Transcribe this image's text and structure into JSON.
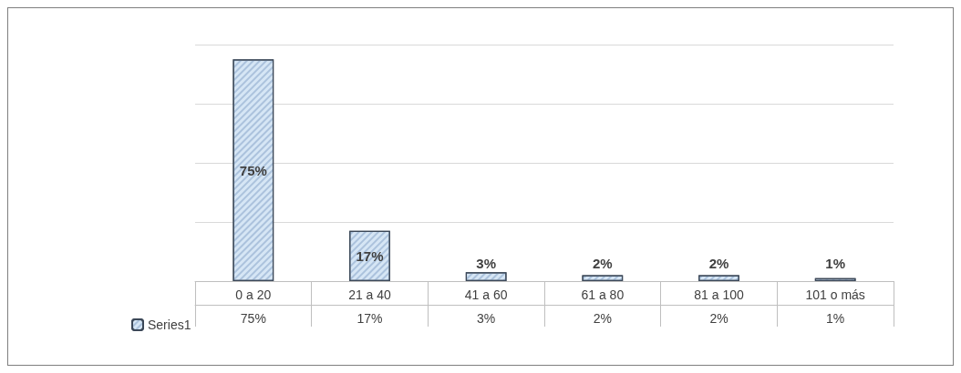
{
  "chart_data": {
    "type": "bar",
    "categories": [
      "0 a 20",
      "21 a 40",
      "41 a 60",
      "61 a 80",
      "81 a 100",
      "101 o más"
    ],
    "series": [
      {
        "name": "Series1",
        "color": "#d6e6f5",
        "values": [
          75,
          17,
          3,
          2,
          2,
          1
        ],
        "value_labels": [
          "75%",
          "17%",
          "3%",
          "2%",
          "2%",
          "1%"
        ]
      }
    ],
    "grid": "y",
    "legend": "bottom left",
    "tick_labels": "x"
  }
}
